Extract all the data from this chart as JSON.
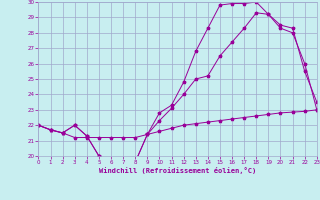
{
  "xlabel": "Windchill (Refroidissement éolien,°C)",
  "bg_color": "#c8eef0",
  "grid_color": "#a0a8cc",
  "line_color": "#990099",
  "xlim": [
    0,
    23
  ],
  "ylim": [
    20,
    30
  ],
  "xticks": [
    0,
    1,
    2,
    3,
    4,
    5,
    6,
    7,
    8,
    9,
    10,
    11,
    12,
    13,
    14,
    15,
    16,
    17,
    18,
    19,
    20,
    21,
    22,
    23
  ],
  "yticks": [
    20,
    21,
    22,
    23,
    24,
    25,
    26,
    27,
    28,
    29,
    30
  ],
  "line1_x": [
    0,
    1,
    2,
    3,
    4,
    5,
    6,
    7,
    8,
    9,
    10,
    11,
    12,
    13,
    14,
    15,
    16,
    17,
    18,
    19,
    20,
    21,
    22,
    23
  ],
  "line1_y": [
    22.0,
    21.7,
    21.5,
    21.2,
    21.2,
    21.2,
    21.2,
    21.2,
    21.2,
    21.4,
    21.6,
    21.8,
    22.0,
    22.1,
    22.2,
    22.3,
    22.4,
    22.5,
    22.6,
    22.7,
    22.8,
    22.85,
    22.9,
    23.0
  ],
  "line2_x": [
    0,
    1,
    2,
    3,
    4,
    5,
    6,
    7,
    8,
    9,
    10,
    11,
    12,
    13,
    14,
    15,
    16,
    17,
    18,
    19,
    20,
    21,
    22,
    23
  ],
  "line2_y": [
    22.0,
    21.7,
    21.5,
    22.0,
    21.3,
    20.0,
    19.75,
    19.65,
    19.6,
    21.4,
    22.3,
    23.1,
    24.0,
    25.0,
    25.2,
    26.5,
    27.4,
    28.3,
    29.3,
    29.2,
    28.5,
    28.3,
    25.5,
    23.5
  ],
  "line3_x": [
    0,
    1,
    2,
    3,
    4,
    5,
    6,
    7,
    8,
    9,
    10,
    11,
    12,
    13,
    14,
    15,
    16,
    17,
    18,
    19,
    20,
    21,
    22,
    23
  ],
  "line3_y": [
    22.0,
    21.7,
    21.5,
    22.0,
    21.3,
    20.0,
    19.75,
    19.65,
    19.6,
    21.4,
    22.8,
    23.3,
    24.8,
    26.8,
    28.3,
    29.8,
    29.9,
    29.9,
    30.0,
    29.2,
    28.3,
    28.0,
    26.0,
    23.0
  ]
}
